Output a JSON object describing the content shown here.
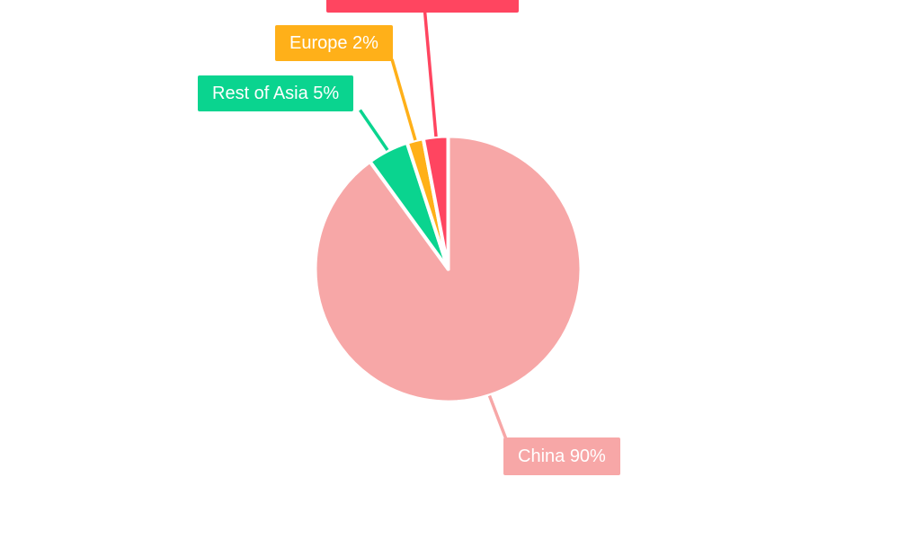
{
  "canvas": {
    "background_color": "#ffffff"
  },
  "chart_data": {
    "type": "pie",
    "title": "",
    "legend": "none",
    "labels_style": "callout boxes with leader lines, white text",
    "start_angle_deg": 0,
    "direction": "clockwise",
    "total": 100,
    "slices": [
      {
        "name": "China",
        "value": 90,
        "display": "China 90%",
        "color": "#f7a7a7",
        "label_visible": true,
        "label_cut_off": false
      },
      {
        "name": "Rest of Asia",
        "value": 5,
        "display": "Rest of Asia 5%",
        "color": "#0ad48f",
        "label_visible": true,
        "label_cut_off": false
      },
      {
        "name": "Europe",
        "value": 2,
        "display": "Europe 2%",
        "color": "#ffb019",
        "label_visible": true,
        "label_cut_off": false
      },
      {
        "name": "",
        "value": 3,
        "display": "",
        "color": "#ff4560",
        "label_visible": false,
        "label_cut_off": true
      }
    ]
  }
}
